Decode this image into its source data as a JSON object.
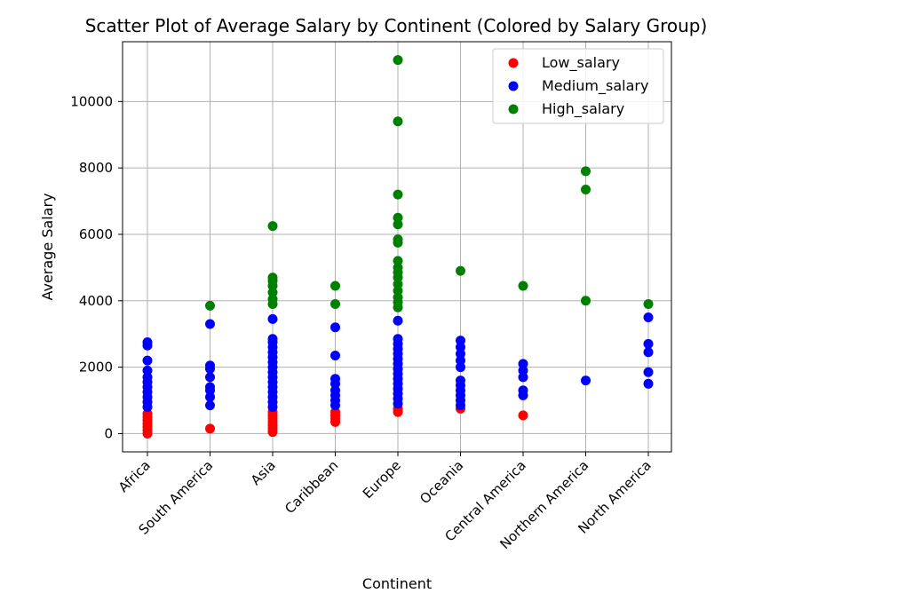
{
  "chart_data": {
    "type": "scatter",
    "title": "Scatter Plot of Average Salary by Continent (Colored by Salary Group)",
    "xlabel": "Continent",
    "ylabel": "Average Salary",
    "categories": [
      "Africa",
      "South America",
      "Asia",
      "Caribbean",
      "Europe",
      "Oceania",
      "Central America",
      "Northern America",
      "North America"
    ],
    "ylim": [
      -550,
      11800
    ],
    "yticks": [
      0,
      2000,
      4000,
      6000,
      8000,
      10000
    ],
    "grid": true,
    "legend_position": "top-right",
    "series": [
      {
        "name": "Low_salary",
        "color": "#ff0000",
        "points": [
          [
            "Africa",
            0
          ],
          [
            "Africa",
            100
          ],
          [
            "Africa",
            200
          ],
          [
            "Africa",
            300
          ],
          [
            "Africa",
            400
          ],
          [
            "Africa",
            500
          ],
          [
            "Africa",
            600
          ],
          [
            "South America",
            150
          ],
          [
            "Asia",
            50
          ],
          [
            "Asia",
            150
          ],
          [
            "Asia",
            250
          ],
          [
            "Asia",
            350
          ],
          [
            "Asia",
            450
          ],
          [
            "Asia",
            550
          ],
          [
            "Asia",
            650
          ],
          [
            "Caribbean",
            350
          ],
          [
            "Caribbean",
            450
          ],
          [
            "Caribbean",
            550
          ],
          [
            "Caribbean",
            650
          ],
          [
            "Europe",
            650
          ],
          [
            "Europe",
            750
          ],
          [
            "Oceania",
            750
          ],
          [
            "Central America",
            550
          ]
        ]
      },
      {
        "name": "Medium_salary",
        "color": "#0000ff",
        "points": [
          [
            "Africa",
            800
          ],
          [
            "Africa",
            950
          ],
          [
            "Africa",
            1100
          ],
          [
            "Africa",
            1250
          ],
          [
            "Africa",
            1400
          ],
          [
            "Africa",
            1550
          ],
          [
            "Africa",
            1700
          ],
          [
            "Africa",
            1900
          ],
          [
            "Africa",
            2200
          ],
          [
            "Africa",
            2650
          ],
          [
            "Africa",
            2750
          ],
          [
            "South America",
            850
          ],
          [
            "South America",
            1100
          ],
          [
            "South America",
            1300
          ],
          [
            "South America",
            1400
          ],
          [
            "South America",
            1700
          ],
          [
            "South America",
            1950
          ],
          [
            "South America",
            2050
          ],
          [
            "South America",
            3300
          ],
          [
            "Asia",
            800
          ],
          [
            "Asia",
            950
          ],
          [
            "Asia",
            1100
          ],
          [
            "Asia",
            1250
          ],
          [
            "Asia",
            1400
          ],
          [
            "Asia",
            1550
          ],
          [
            "Asia",
            1700
          ],
          [
            "Asia",
            1850
          ],
          [
            "Asia",
            2000
          ],
          [
            "Asia",
            2150
          ],
          [
            "Asia",
            2300
          ],
          [
            "Asia",
            2450
          ],
          [
            "Asia",
            2600
          ],
          [
            "Asia",
            2750
          ],
          [
            "Asia",
            2850
          ],
          [
            "Asia",
            3450
          ],
          [
            "Caribbean",
            850
          ],
          [
            "Caribbean",
            1000
          ],
          [
            "Caribbean",
            1150
          ],
          [
            "Caribbean",
            1300
          ],
          [
            "Caribbean",
            1500
          ],
          [
            "Caribbean",
            1650
          ],
          [
            "Caribbean",
            2350
          ],
          [
            "Caribbean",
            3200
          ],
          [
            "Europe",
            900
          ],
          [
            "Europe",
            1050
          ],
          [
            "Europe",
            1200
          ],
          [
            "Europe",
            1350
          ],
          [
            "Europe",
            1500
          ],
          [
            "Europe",
            1650
          ],
          [
            "Europe",
            1800
          ],
          [
            "Europe",
            1950
          ],
          [
            "Europe",
            2100
          ],
          [
            "Europe",
            2250
          ],
          [
            "Europe",
            2400
          ],
          [
            "Europe",
            2550
          ],
          [
            "Europe",
            2700
          ],
          [
            "Europe",
            2850
          ],
          [
            "Europe",
            3400
          ],
          [
            "Oceania",
            850
          ],
          [
            "Oceania",
            1000
          ],
          [
            "Oceania",
            1150
          ],
          [
            "Oceania",
            1300
          ],
          [
            "Oceania",
            1450
          ],
          [
            "Oceania",
            1600
          ],
          [
            "Oceania",
            2000
          ],
          [
            "Oceania",
            2200
          ],
          [
            "Oceania",
            2400
          ],
          [
            "Oceania",
            2600
          ],
          [
            "Oceania",
            2800
          ],
          [
            "Central America",
            1150
          ],
          [
            "Central America",
            1300
          ],
          [
            "Central America",
            1700
          ],
          [
            "Central America",
            1900
          ],
          [
            "Central America",
            2100
          ],
          [
            "Northern America",
            1600
          ],
          [
            "North America",
            1500
          ],
          [
            "North America",
            1850
          ],
          [
            "North America",
            2450
          ],
          [
            "North America",
            2700
          ],
          [
            "North America",
            3500
          ]
        ]
      },
      {
        "name": "High_salary",
        "color": "#008000",
        "points": [
          [
            "South America",
            3850
          ],
          [
            "Asia",
            3900
          ],
          [
            "Asia",
            4050
          ],
          [
            "Asia",
            4250
          ],
          [
            "Asia",
            4450
          ],
          [
            "Asia",
            4600
          ],
          [
            "Asia",
            4700
          ],
          [
            "Asia",
            6250
          ],
          [
            "Caribbean",
            3900
          ],
          [
            "Caribbean",
            4450
          ],
          [
            "Europe",
            3800
          ],
          [
            "Europe",
            3950
          ],
          [
            "Europe",
            4100
          ],
          [
            "Europe",
            4300
          ],
          [
            "Europe",
            4500
          ],
          [
            "Europe",
            4700
          ],
          [
            "Europe",
            4850
          ],
          [
            "Europe",
            5000
          ],
          [
            "Europe",
            5200
          ],
          [
            "Europe",
            5750
          ],
          [
            "Europe",
            5850
          ],
          [
            "Europe",
            6300
          ],
          [
            "Europe",
            6500
          ],
          [
            "Europe",
            7200
          ],
          [
            "Europe",
            9400
          ],
          [
            "Europe",
            11250
          ],
          [
            "Oceania",
            4900
          ],
          [
            "Central America",
            4450
          ],
          [
            "Northern America",
            4000
          ],
          [
            "Northern America",
            7350
          ],
          [
            "Northern America",
            7900
          ],
          [
            "North America",
            3900
          ]
        ]
      }
    ]
  }
}
